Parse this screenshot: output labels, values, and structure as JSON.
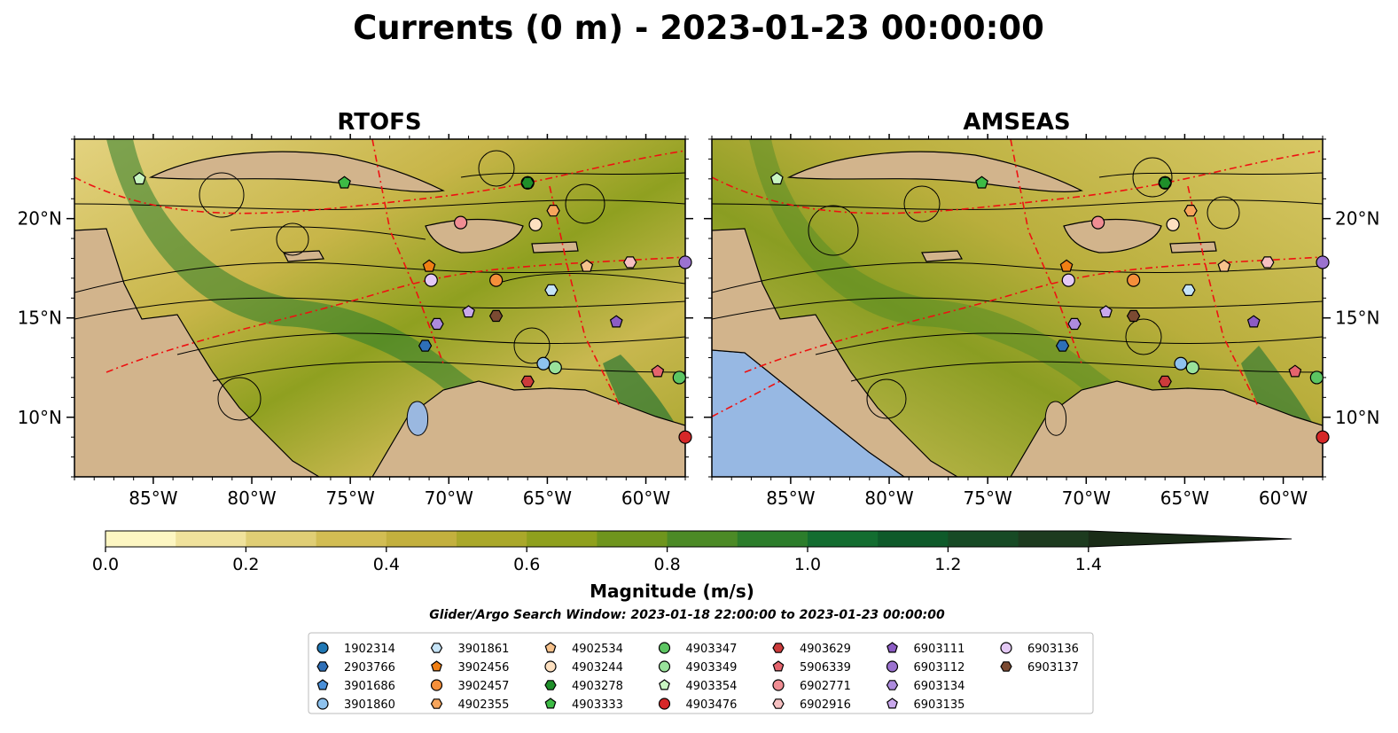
{
  "figure": {
    "title": "Currents (0 m) - 2023-01-23 00:00:00",
    "search_window": "Glider/Argo Search Window: 2023-01-18 22:00:00 to 2023-01-23 00:00:00"
  },
  "chart_data": {
    "type": "map",
    "panels": [
      {
        "title": "RTOFS"
      },
      {
        "title": "AMSEAS"
      }
    ],
    "lon_range": [
      -89,
      -58
    ],
    "lat_range": [
      7,
      24
    ],
    "lon_ticks": [
      {
        "value": -85,
        "label": "85°W"
      },
      {
        "value": -80,
        "label": "80°W"
      },
      {
        "value": -75,
        "label": "75°W"
      },
      {
        "value": -70,
        "label": "70°W"
      },
      {
        "value": -65,
        "label": "65°W"
      },
      {
        "value": -60,
        "label": "60°W"
      }
    ],
    "lat_ticks": [
      {
        "value": 20,
        "label": "20°N"
      },
      {
        "value": 15,
        "label": "15°N"
      },
      {
        "value": 10,
        "label": "10°N"
      }
    ],
    "colorbar": {
      "label": "Magnitude (m/s)",
      "min": 0.0,
      "max": 1.5,
      "extend": "max",
      "ticks": [
        {
          "value": 0.0,
          "label": "0.0"
        },
        {
          "value": 0.2,
          "label": "0.2"
        },
        {
          "value": 0.4,
          "label": "0.4"
        },
        {
          "value": 0.6,
          "label": "0.6"
        },
        {
          "value": 0.8,
          "label": "0.8"
        },
        {
          "value": 1.0,
          "label": "1.0"
        },
        {
          "value": 1.2,
          "label": "1.2"
        },
        {
          "value": 1.4,
          "label": "1.4"
        }
      ],
      "colors": [
        "#fdf6c2",
        "#f0e29c",
        "#e0ce75",
        "#d2bd53",
        "#c3b03e",
        "#aaa82a",
        "#8fa01d",
        "#6f951d",
        "#4c8a26",
        "#2c7d2b",
        "#136d30",
        "#0e5a2a",
        "#174a25",
        "#1d3b1f",
        "#1a2c17"
      ]
    },
    "floats": [
      {
        "id": "1902314",
        "marker": "circle",
        "color": "#1f77b4",
        "lon": -66.0,
        "lat": 21.8
      },
      {
        "id": "2903766",
        "marker": "hexagon",
        "color": "#2e6fb7",
        "lon": -71.2,
        "lat": 13.6
      },
      {
        "id": "3901686",
        "marker": "pentagon",
        "color": "#4a8fd8",
        "lon": -66.0,
        "lat": 21.8
      },
      {
        "id": "3901860",
        "marker": "circle",
        "color": "#8ec2ee",
        "lon": -65.2,
        "lat": 12.7
      },
      {
        "id": "3901861",
        "marker": "hexagon",
        "color": "#c6e4f7",
        "lon": -64.8,
        "lat": 16.4
      },
      {
        "id": "3902456",
        "marker": "pentagon",
        "color": "#f07f14",
        "lon": -71.0,
        "lat": 17.6
      },
      {
        "id": "3902457",
        "marker": "circle",
        "color": "#f58f3a",
        "lon": -67.6,
        "lat": 16.9
      },
      {
        "id": "4902355",
        "marker": "hexagon",
        "color": "#f6a55c",
        "lon": -64.7,
        "lat": 20.4
      },
      {
        "id": "4902534",
        "marker": "pentagon",
        "color": "#f7c28c",
        "lon": -63.0,
        "lat": 17.6
      },
      {
        "id": "4903244",
        "marker": "circle",
        "color": "#fde0c0",
        "lon": -65.6,
        "lat": 19.7
      },
      {
        "id": "4903278",
        "marker": "hexagon",
        "color": "#1f8f2a",
        "lon": -66.0,
        "lat": 21.8
      },
      {
        "id": "4903333",
        "marker": "pentagon",
        "color": "#3dbb45",
        "lon": -75.3,
        "lat": 21.8
      },
      {
        "id": "4903347",
        "marker": "circle",
        "color": "#5cc562",
        "lon": -58.3,
        "lat": 12.0
      },
      {
        "id": "4903349",
        "marker": "circle",
        "color": "#99e29b",
        "lon": -64.6,
        "lat": 12.5
      },
      {
        "id": "4903354",
        "marker": "pentagon",
        "color": "#c9f5c2",
        "lon": -85.7,
        "lat": 22.0
      },
      {
        "id": "4903476",
        "marker": "circle",
        "color": "#d62728",
        "lon": -57.6,
        "lat": 9.0
      },
      {
        "id": "4903629",
        "marker": "hexagon",
        "color": "#cc3b3b",
        "lon": -66.0,
        "lat": 11.8
      },
      {
        "id": "5906339",
        "marker": "pentagon",
        "color": "#e5646d",
        "lon": -59.4,
        "lat": 12.3
      },
      {
        "id": "6902771",
        "marker": "circle",
        "color": "#f08d93",
        "lon": -69.4,
        "lat": 19.8
      },
      {
        "id": "6902916",
        "marker": "hexagon",
        "color": "#f6c0c1",
        "lon": -60.8,
        "lat": 17.8
      },
      {
        "id": "6903111",
        "marker": "pentagon",
        "color": "#8c5cc4",
        "lon": -61.5,
        "lat": 14.8
      },
      {
        "id": "6903112",
        "marker": "circle",
        "color": "#9b72cf",
        "lon": -57.4,
        "lat": 17.8
      },
      {
        "id": "6903134",
        "marker": "hexagon",
        "color": "#ad8bde",
        "lon": -70.6,
        "lat": 14.7
      },
      {
        "id": "6903135",
        "marker": "pentagon",
        "color": "#c9a8ec",
        "lon": -69.0,
        "lat": 15.3
      },
      {
        "id": "6903136",
        "marker": "circle",
        "color": "#e4c9f5",
        "lon": -70.9,
        "lat": 16.9
      },
      {
        "id": "6903137",
        "marker": "hexagon",
        "color": "#7b4a32",
        "lon": -67.6,
        "lat": 15.1
      }
    ]
  }
}
